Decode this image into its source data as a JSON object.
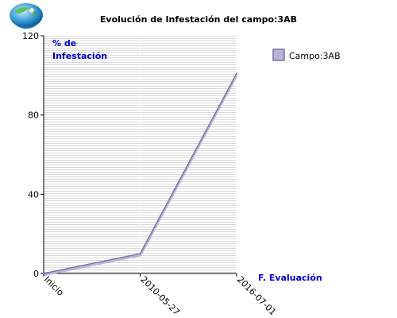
{
  "logo": {
    "icon": "globe-hands-logo"
  },
  "colors": {
    "series": "#7b74a6",
    "series_light": "#b9b4d6",
    "axis_title": "#0000cc",
    "grid_stripe": "#d8d8d8"
  },
  "chart_data": {
    "type": "line",
    "title": "Evolución de Infestación del campo:3AB",
    "ylabel_line1": "% de",
    "ylabel_line2": "Infestación",
    "xlabel": "F. Evaluación",
    "categories": [
      "Inicio",
      "2010-05-27",
      "2016-07-01"
    ],
    "series": [
      {
        "name": "Campo:3AB",
        "values": [
          0,
          10,
          101
        ]
      }
    ],
    "ylim": [
      0,
      120
    ],
    "yticks": [
      0,
      40,
      80,
      120
    ],
    "grid": true,
    "legend_position": "top-right"
  }
}
